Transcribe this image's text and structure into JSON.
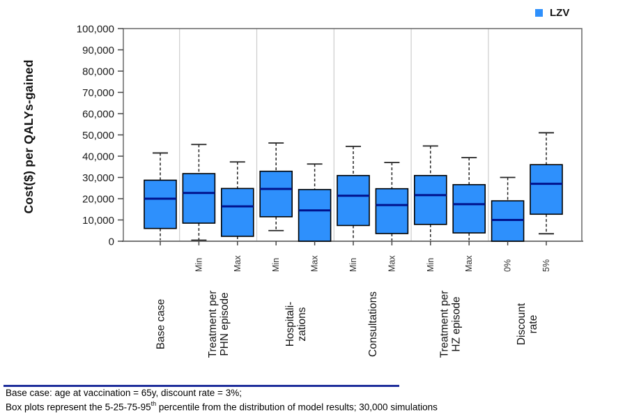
{
  "legend": {
    "label": "LZV"
  },
  "y_axis_title": "Cost($) per QALYs-gained",
  "footnotes": {
    "line1": "Base case: age at vaccination = 65y, discount rate = 3%;",
    "line2_prefix": "Box plots represent the 5-25-75-95",
    "line2_sup": "th",
    "line2_suffix": "  percentile from the distribution of model results; 30,000 simulations"
  },
  "colors": {
    "box_fill": "#2E90FC",
    "box_border": "#000000",
    "median": "#00128C",
    "whisker": "#222222",
    "separator": "#CCCCCC",
    "plot_border": "#666666",
    "axis_line": "#777777",
    "tick": "#444444",
    "legend_swatch": "#2E90FC",
    "footnote_rule": "#1F2F9B"
  },
  "chart_data": {
    "type": "box",
    "series_name": "LZV",
    "title": "",
    "xlabel": "",
    "ylabel": "Cost($) per QALYs-gained",
    "ylim": [
      0,
      100000
    ],
    "grid": "vertical-group-separators-only",
    "legend_position": "top-right",
    "percentiles_shown": "5-25-75-95 with median",
    "yticks": [
      0,
      10000,
      20000,
      30000,
      40000,
      50000,
      60000,
      70000,
      80000,
      90000,
      100000
    ],
    "ytick_labels": [
      "0",
      "10,000",
      "20,000",
      "30,000",
      "40,000",
      "50,000",
      "60,000",
      "70,000",
      "80,000",
      "90,000",
      "100,000"
    ],
    "groups": [
      {
        "label_lines": [
          "Base case"
        ],
        "boxes": [
          {
            "tick": "",
            "p5": 500,
            "p25": 6000,
            "median": 20000,
            "p75": 28700,
            "p95": 41500,
            "p5_cap": false
          }
        ]
      },
      {
        "label_lines": [
          "Treatment per",
          "PHN episode"
        ],
        "boxes": [
          {
            "tick": "Min",
            "p5": 500,
            "p25": 8500,
            "median": 22700,
            "p75": 31800,
            "p95": 45500,
            "p5_cap": true
          },
          {
            "tick": "Max",
            "p5": 0,
            "p25": 2300,
            "median": 16400,
            "p75": 24800,
            "p95": 37300,
            "p5_cap": false
          }
        ]
      },
      {
        "label_lines": [
          "Hospitali-",
          "zations"
        ],
        "boxes": [
          {
            "tick": "Min",
            "p5": 5000,
            "p25": 11500,
            "median": 24600,
            "p75": 32900,
            "p95": 46200,
            "p5_cap": true
          },
          {
            "tick": "Max",
            "p5": 0,
            "p25": 0,
            "median": 14500,
            "p75": 24300,
            "p95": 36300,
            "p5_cap": false
          }
        ]
      },
      {
        "label_lines": [
          "Consultations"
        ],
        "boxes": [
          {
            "tick": "Min",
            "p5": 500,
            "p25": 7400,
            "median": 21400,
            "p75": 30900,
            "p95": 44600,
            "p5_cap": false
          },
          {
            "tick": "Max",
            "p5": 300,
            "p25": 3600,
            "median": 17000,
            "p75": 24700,
            "p95": 37000,
            "p5_cap": false
          }
        ]
      },
      {
        "label_lines": [
          "Treatment per",
          "HZ episode"
        ],
        "boxes": [
          {
            "tick": "Min",
            "p5": 500,
            "p25": 7900,
            "median": 21700,
            "p75": 30900,
            "p95": 44800,
            "p5_cap": false
          },
          {
            "tick": "Max",
            "p5": 500,
            "p25": 3900,
            "median": 17400,
            "p75": 26600,
            "p95": 39300,
            "p5_cap": false
          }
        ]
      },
      {
        "label_lines": [
          "Discount",
          "rate"
        ],
        "boxes": [
          {
            "tick": "0%",
            "p5": 0,
            "p25": 0,
            "median": 10000,
            "p75": 19000,
            "p95": 30000,
            "p5_cap": false
          },
          {
            "tick": "5%",
            "p5": 3500,
            "p25": 12700,
            "median": 27000,
            "p75": 36000,
            "p95": 51000,
            "p5_cap": true
          }
        ]
      }
    ]
  }
}
